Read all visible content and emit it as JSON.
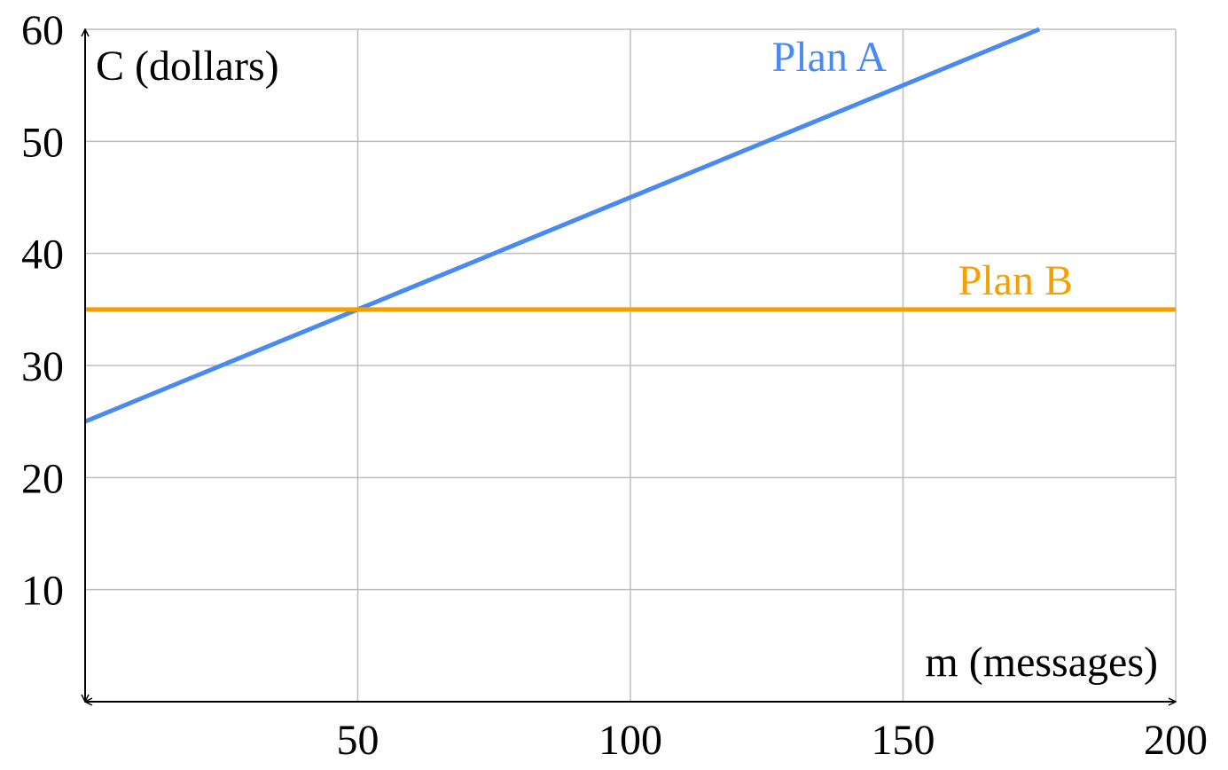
{
  "chart_data": {
    "type": "line",
    "x_label": "m (messages)",
    "y_label": "C (dollars)",
    "xlim": [
      0,
      200
    ],
    "ylim": [
      0,
      60
    ],
    "xticks": [
      50,
      100,
      150,
      200
    ],
    "yticks": [
      10,
      20,
      30,
      40,
      50,
      60
    ],
    "grid": true,
    "series": [
      {
        "name": "Plan A",
        "color": "#4a8af0",
        "x": [
          0,
          175
        ],
        "values": [
          25,
          60
        ]
      },
      {
        "name": "Plan B",
        "color": "#f5a000",
        "x": [
          0,
          200
        ],
        "values": [
          35,
          35
        ]
      }
    ]
  }
}
